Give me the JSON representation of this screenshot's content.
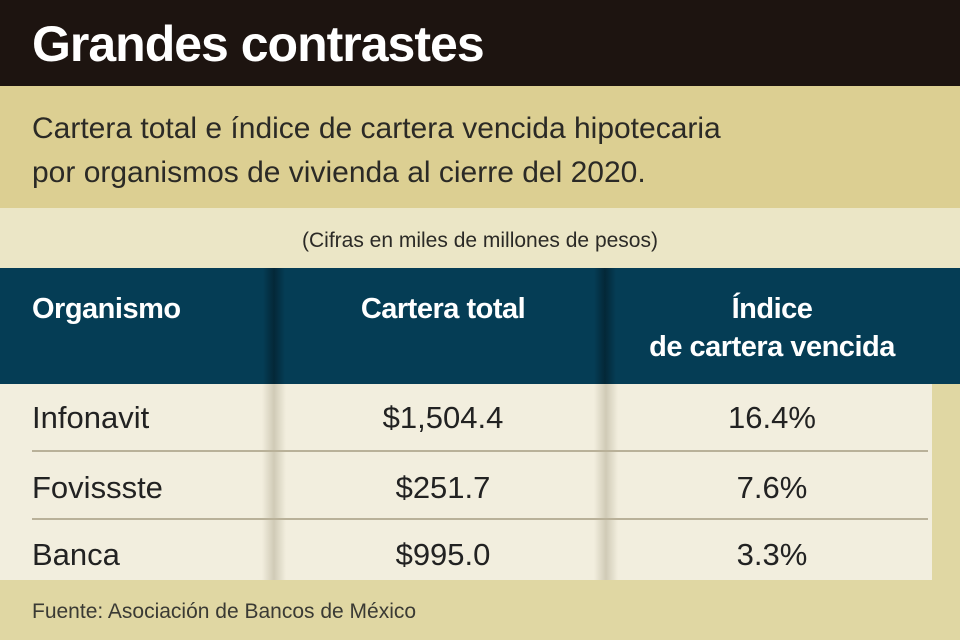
{
  "header": {
    "title": "Grandes contrastes",
    "subtitle_line1": "Cartera total e índice de cartera vencida hipotecaria",
    "subtitle_line2": "por organismos de vivienda al cierre del 2020.",
    "units": "(Cifras en miles de millones de pesos)"
  },
  "table": {
    "columns": [
      "Organismo",
      "Cartera total",
      "Índice",
      "de cartera vencida"
    ],
    "rows": [
      {
        "organismo": "Infonavit",
        "cartera": "$1,504.4",
        "indice": "16.4%"
      },
      {
        "organismo": "Fovissste",
        "cartera": "$251.7",
        "indice": "7.6%"
      },
      {
        "organismo": "Banca",
        "cartera": "$995.0",
        "indice": "3.3%"
      }
    ]
  },
  "source": "Fuente: Asociación de Bancos de México",
  "colors": {
    "title_bar": "#1d1410",
    "header_row": "#053d55",
    "subtitle_band": "#dccf92",
    "body": "#f2eede"
  },
  "chart_data": {
    "type": "table",
    "title": "Grandes contrastes",
    "subtitle": "Cartera total e índice de cartera vencida hipotecaria por organismos de vivienda al cierre del 2020.",
    "units": "(Cifras en miles de millones de pesos)",
    "headers": [
      "Organismo",
      "Cartera total",
      "Índice de cartera vencida"
    ],
    "rows": [
      [
        "Infonavit",
        1504.4,
        16.4
      ],
      [
        "Fovissste",
        251.7,
        7.6
      ],
      [
        "Banca",
        995.0,
        3.3
      ]
    ]
  }
}
